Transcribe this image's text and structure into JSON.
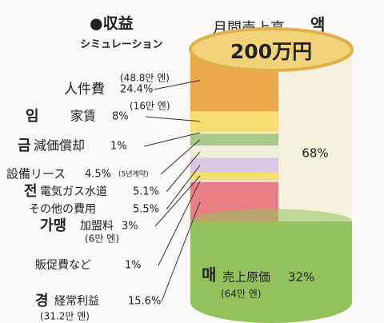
{
  "chart_data": {
    "type": "stacked-cylinder",
    "title": "●収益",
    "subtitle": "シミュレーション",
    "total_label": "月間売上高",
    "total_label_suffix": "액",
    "total": "200万円",
    "segments": [
      {
        "name": "人件費",
        "value": 24.4,
        "value_label": "24.4%",
        "note": "(48.8만 엔)",
        "color": "#eda84e"
      },
      {
        "name": "家賃",
        "value": 8,
        "value_label": "8%",
        "note": "(16만 엔)",
        "prefix": "임",
        "color": "#f7dd72"
      },
      {
        "name": "減価償却",
        "value": 1,
        "value_label": "1%",
        "prefix": "금",
        "color": "#f9eeb0"
      },
      {
        "name": "設備リース",
        "value": 4.5,
        "value_label": "4.5%",
        "note": "(5년계약)",
        "color": "#a9c98a"
      },
      {
        "name": "電気ガス水道",
        "value": 5.1,
        "value_label": "5.1%",
        "prefix": "전",
        "color": "#eef0dc"
      },
      {
        "name": "その他の費用",
        "value": 5.5,
        "value_label": "5.5%",
        "color": "#d9c7e4"
      },
      {
        "name": "加盟料",
        "value": 3,
        "value_label": "3%",
        "note": "(6만 엔)",
        "prefix": "가맹",
        "color": "#f6e06a"
      },
      {
        "name": "販促費など",
        "value": 1,
        "value_label": "1%",
        "color": "#f1e4e4"
      },
      {
        "name": "経常利益",
        "value": 15.6,
        "value_label": "15.6%",
        "note": "(31.2만 엔)",
        "prefix": "경",
        "color": "#e77f84"
      }
    ],
    "rest": {
      "value": 68,
      "value_label": "68%",
      "color": "#f5f1dc"
    },
    "cost": {
      "name": "売上原価",
      "value": 32,
      "value_label": "32%",
      "note": "(64만 엔)",
      "prefix": "매",
      "color": "#93c25c"
    }
  }
}
